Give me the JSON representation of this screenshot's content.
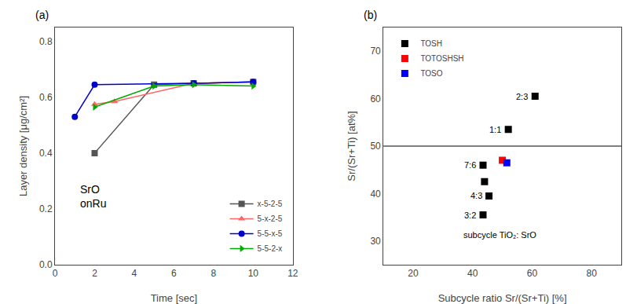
{
  "chart_data": [
    {
      "type": "line",
      "title": "(a)",
      "x_label": "Time [sec]",
      "y_label": "Layer density [μg/cm²]",
      "series": [
        {
          "name": "x-5-2-5",
          "color": "#555555",
          "marker": "square",
          "x": [
            2,
            5,
            7,
            10
          ],
          "values": [
            0.4,
            0.645,
            0.65,
            0.655
          ]
        },
        {
          "name": "5-x-2-5",
          "color": "#ff6666",
          "marker": "triangle-up",
          "x": [
            2,
            3,
            7,
            10
          ],
          "values": [
            0.575,
            0.585,
            0.65,
            0.655
          ]
        },
        {
          "name": "5-5-x-5",
          "color": "#0000cc",
          "marker": "circle",
          "x": [
            1,
            2,
            7,
            10
          ],
          "values": [
            0.53,
            0.645,
            0.65,
            0.655
          ]
        },
        {
          "name": "5-5-2-x",
          "color": "#00aa00",
          "marker": "triangle-right",
          "x": [
            2,
            5,
            7,
            10
          ],
          "values": [
            0.565,
            0.64,
            0.645,
            0.64
          ]
        }
      ],
      "xlim": [
        0,
        12
      ],
      "ylim": [
        0.0,
        0.85
      ],
      "xticks": [
        0,
        2,
        4,
        6,
        8,
        10,
        12
      ],
      "yticks": [
        {
          "value": 0.0,
          "label": "0.0"
        },
        0.2,
        0.4,
        0.6,
        0.8
      ],
      "annotation": "SrO\nonRu",
      "legend": "lower right",
      "grid": false
    },
    {
      "type": "scatter",
      "title": "(b)",
      "x_label": "Subcycle ratio Sr/(Sr+Ti) [%]",
      "y_label": "Sr/(Sr+Ti) [at%]",
      "series": [
        {
          "name": "TOSH",
          "color": "#000000",
          "marker": "square",
          "x": [
            43.5,
            44.0,
            45.5,
            61.0,
            52.0,
            43.5
          ],
          "values": [
            46.0,
            42.5,
            39.5,
            60.5,
            53.5,
            35.5
          ],
          "labels": [
            "7:6",
            null,
            "4:3",
            "2:3",
            "1:1",
            "3:2"
          ]
        },
        {
          "name": "TOTOSHSH",
          "color": "#ff0000",
          "marker": "square",
          "x": [
            50.0
          ],
          "values": [
            47.0
          ]
        },
        {
          "name": "TOSO",
          "color": "#0000ff",
          "marker": "square",
          "x": [
            51.5
          ],
          "values": [
            46.5
          ]
        }
      ],
      "hline": 50,
      "xlim": [
        10,
        90
      ],
      "ylim": [
        25,
        75
      ],
      "xticks": [
        20,
        40,
        60,
        80
      ],
      "yticks": [
        30,
        40,
        50,
        60,
        70
      ],
      "annotation": "subcycle TiO₂: SrO",
      "legend": "upper left",
      "grid": false
    }
  ]
}
